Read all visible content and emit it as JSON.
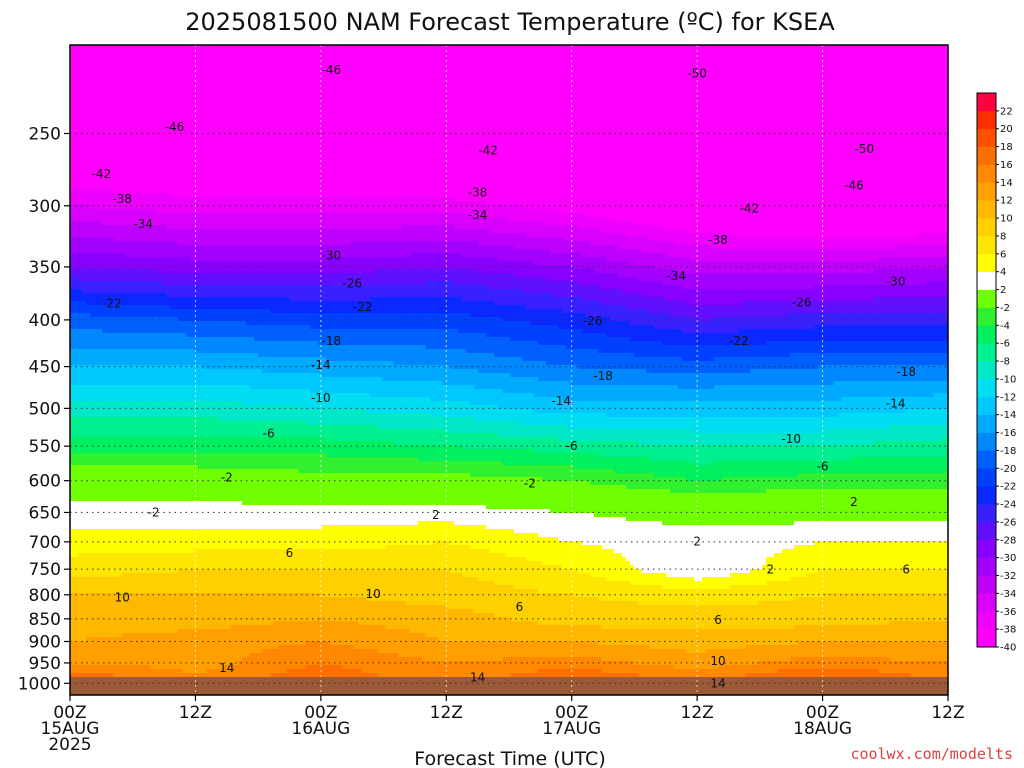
{
  "title": "2025081500 NAM Forecast Temperature (ºC) for KSEA",
  "credit": "coolwx.com/modelts",
  "chart_data": {
    "type": "heatmap",
    "xlabel": "Forecast Time (UTC)",
    "ylabel": "",
    "y_scale": "log-pressure",
    "ylim": [
      1030,
      200
    ],
    "xlim": [
      "2025-08-15 00Z",
      "2025-08-18 12Z"
    ],
    "x_ticks": [
      {
        "hours": 0,
        "lines": [
          "00Z",
          "15AUG",
          "2025"
        ]
      },
      {
        "hours": 12,
        "lines": [
          "12Z"
        ]
      },
      {
        "hours": 24,
        "lines": [
          "00Z",
          "16AUG"
        ]
      },
      {
        "hours": 36,
        "lines": [
          "12Z"
        ]
      },
      {
        "hours": 48,
        "lines": [
          "00Z",
          "17AUG"
        ]
      },
      {
        "hours": 60,
        "lines": [
          "12Z"
        ]
      },
      {
        "hours": 72,
        "lines": [
          "00Z",
          "18AUG"
        ]
      },
      {
        "hours": 84,
        "lines": [
          "12Z"
        ]
      }
    ],
    "y_ticks": [
      250,
      300,
      350,
      400,
      450,
      500,
      550,
      600,
      650,
      700,
      750,
      800,
      850,
      900,
      950,
      1000
    ],
    "grid": true,
    "legend": "right colorbar",
    "ground_color": "#9a5a38",
    "colorbar": {
      "levels": [
        -40,
        -38,
        -36,
        -34,
        -32,
        -30,
        -28,
        -26,
        -24,
        -22,
        -20,
        -18,
        -16,
        -14,
        -12,
        -10,
        -8,
        -6,
        -4,
        -2,
        2,
        4,
        6,
        8,
        10,
        12,
        14,
        16,
        18,
        20,
        22
      ],
      "colors": [
        "#ff00ff",
        "#ee00ff",
        "#d800ff",
        "#c000ff",
        "#a400ff",
        "#8800ff",
        "#6010ff",
        "#3820ff",
        "#0a28ff",
        "#0040ff",
        "#0060ff",
        "#0088ff",
        "#00aaff",
        "#00c8ff",
        "#00dcf0",
        "#00e8c8",
        "#00f090",
        "#00f060",
        "#30f030",
        "#70ff00",
        "#ffffff",
        "#ffff00",
        "#ffe600",
        "#ffd000",
        "#ffb800",
        "#ffa000",
        "#ff8800",
        "#ff6e00",
        "#ff5000",
        "#ff3000",
        "#ff0040"
      ]
    },
    "temperature_profile_levels_hPa": [
      200,
      250,
      300,
      350,
      400,
      450,
      500,
      550,
      600,
      650,
      700,
      750,
      800,
      850,
      900,
      950,
      1000,
      1030
    ],
    "temperature_profile_times_h": [
      0,
      12,
      24,
      36,
      48,
      60,
      72,
      84
    ],
    "temperature_C": [
      [
        -52,
        -52,
        -52,
        -53,
        -54,
        -55,
        -55,
        -55
      ],
      [
        -44,
        -45,
        -46,
        -46,
        -48,
        -50,
        -51,
        -50
      ],
      [
        -36,
        -37,
        -37,
        -37,
        -39,
        -42,
        -44,
        -43
      ],
      [
        -28,
        -29,
        -29,
        -28,
        -30,
        -33,
        -33,
        -32
      ],
      [
        -19,
        -20,
        -21,
        -21,
        -23,
        -26,
        -25,
        -25
      ],
      [
        -14,
        -14,
        -15,
        -16,
        -18,
        -19,
        -18,
        -18
      ],
      [
        -9,
        -9,
        -10,
        -11,
        -13,
        -13,
        -13,
        -12
      ],
      [
        -5,
        -5,
        -5,
        -6,
        -7,
        -8,
        -8,
        -7
      ],
      [
        0,
        0,
        -1,
        -1,
        -2,
        -4,
        -3,
        -3
      ],
      [
        3,
        3,
        3,
        3,
        2,
        1,
        1,
        1
      ],
      [
        5,
        5,
        5,
        6,
        4,
        3,
        4,
        4
      ],
      [
        7,
        8,
        8,
        8,
        6,
        2,
        6,
        6
      ],
      [
        10,
        10,
        10,
        9,
        8,
        7,
        8,
        8
      ],
      [
        11,
        11,
        12,
        11,
        9,
        9,
        9,
        10
      ],
      [
        12,
        13,
        14,
        12,
        12,
        11,
        12,
        12
      ],
      [
        14,
        13,
        16,
        14,
        15,
        13,
        15,
        14
      ],
      [
        19,
        15,
        18,
        15,
        19,
        16,
        20,
        16
      ],
      [
        22,
        16,
        20,
        16,
        21,
        17,
        22,
        17
      ]
    ],
    "contour_labels": [
      {
        "t": 25,
        "p": 213,
        "v": "-46"
      },
      {
        "t": 60,
        "p": 215,
        "v": "-50"
      },
      {
        "t": 10,
        "p": 246,
        "v": "-46"
      },
      {
        "t": 40,
        "p": 261,
        "v": "-42"
      },
      {
        "t": 76,
        "p": 260,
        "v": "-50"
      },
      {
        "t": 3,
        "p": 277,
        "v": "-42"
      },
      {
        "t": 39,
        "p": 290,
        "v": "-38"
      },
      {
        "t": 75,
        "p": 285,
        "v": "-46"
      },
      {
        "t": 5,
        "p": 295,
        "v": "-38"
      },
      {
        "t": 39,
        "p": 307,
        "v": "-34"
      },
      {
        "t": 65,
        "p": 302,
        "v": "-42"
      },
      {
        "t": 7,
        "p": 314,
        "v": "-34"
      },
      {
        "t": 62,
        "p": 327,
        "v": "-38"
      },
      {
        "t": 25,
        "p": 340,
        "v": "-30"
      },
      {
        "t": 58,
        "p": 358,
        "v": "-34"
      },
      {
        "t": 27,
        "p": 365,
        "v": "-26"
      },
      {
        "t": 79,
        "p": 363,
        "v": "-30"
      },
      {
        "t": 4,
        "p": 384,
        "v": "-22"
      },
      {
        "t": 28,
        "p": 387,
        "v": "-22"
      },
      {
        "t": 70,
        "p": 383,
        "v": "-26"
      },
      {
        "t": 50,
        "p": 401,
        "v": "-26"
      },
      {
        "t": 25,
        "p": 422,
        "v": "-18"
      },
      {
        "t": 64,
        "p": 422,
        "v": "-22"
      },
      {
        "t": 24,
        "p": 448,
        "v": "-14"
      },
      {
        "t": 51,
        "p": 461,
        "v": "-18"
      },
      {
        "t": 80,
        "p": 456,
        "v": "-18"
      },
      {
        "t": 24,
        "p": 487,
        "v": "-10"
      },
      {
        "t": 47,
        "p": 491,
        "v": "-14"
      },
      {
        "t": 79,
        "p": 494,
        "v": "-14"
      },
      {
        "t": 19,
        "p": 533,
        "v": "-6"
      },
      {
        "t": 48,
        "p": 550,
        "v": "-6"
      },
      {
        "t": 69,
        "p": 540,
        "v": "-10"
      },
      {
        "t": 15,
        "p": 595,
        "v": "-2"
      },
      {
        "t": 44,
        "p": 604,
        "v": "-2"
      },
      {
        "t": 72,
        "p": 579,
        "v": "-6"
      },
      {
        "t": 8,
        "p": 650,
        "v": "-2"
      },
      {
        "t": 35,
        "p": 654,
        "v": "2"
      },
      {
        "t": 75,
        "p": 633,
        "v": "2"
      },
      {
        "t": 60,
        "p": 699,
        "v": "2"
      },
      {
        "t": 21,
        "p": 720,
        "v": "6"
      },
      {
        "t": 67,
        "p": 751,
        "v": "2"
      },
      {
        "t": 80,
        "p": 751,
        "v": "6"
      },
      {
        "t": 5,
        "p": 806,
        "v": "10"
      },
      {
        "t": 29,
        "p": 798,
        "v": "10"
      },
      {
        "t": 43,
        "p": 825,
        "v": "6"
      },
      {
        "t": 62,
        "p": 853,
        "v": "6"
      },
      {
        "t": 15,
        "p": 962,
        "v": "14"
      },
      {
        "t": 62,
        "p": 945,
        "v": "10"
      },
      {
        "t": 39,
        "p": 985,
        "v": "14"
      },
      {
        "t": 62,
        "p": 1000,
        "v": "14"
      }
    ]
  }
}
